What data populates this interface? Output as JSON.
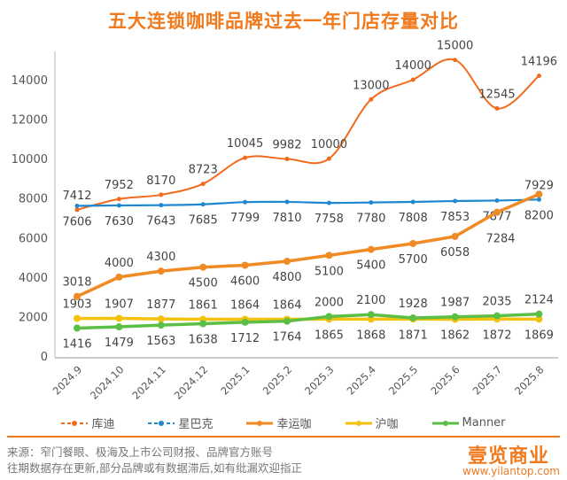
{
  "chart_data": {
    "type": "line",
    "title": "五大连锁咖啡品牌过去一年门店存量对比",
    "categories": [
      "2024.9",
      "2024.10",
      "2024.11",
      "2024.12",
      "2025.1",
      "2025.2",
      "2025.3",
      "2025.4",
      "2025.5",
      "2025.6",
      "2025.7",
      "2025.8"
    ],
    "yticks": [
      0,
      2000,
      4000,
      6000,
      8000,
      10000,
      12000,
      14000
    ],
    "ylim": [
      0,
      14000
    ],
    "legend_position": "bottom",
    "series": [
      {
        "name": "库迪",
        "color": "#f26b1d",
        "values": [
          7412,
          7952,
          8170,
          8723,
          10045,
          9982,
          10000,
          13000,
          14000,
          15000,
          12545,
          14196
        ]
      },
      {
        "name": "星巴克",
        "color": "#1f88d0",
        "values": [
          7606,
          7630,
          7643,
          7685,
          7799,
          7810,
          7758,
          7780,
          7808,
          7853,
          7877,
          7929
        ]
      },
      {
        "name": "幸运咖",
        "color": "#f08a24",
        "values": [
          3018,
          4000,
          4300,
          4500,
          4600,
          4800,
          5100,
          5400,
          5700,
          6058,
          7284,
          8200
        ]
      },
      {
        "name": "沪咖",
        "color": "#f4c20d",
        "values": [
          1903,
          1907,
          1877,
          1861,
          1864,
          1864,
          1865,
          1868,
          1871,
          1862,
          1872,
          1869
        ]
      },
      {
        "name": "Manner",
        "color": "#5cbf45",
        "values": [
          1416,
          1479,
          1563,
          1638,
          1712,
          1764,
          2000,
          2100,
          1928,
          1987,
          2035,
          2124
        ]
      }
    ]
  },
  "footer": {
    "source": "来源：窄门餐眼、极海及上市公司财报、品牌官方账号",
    "note": "往期数据存在更新,部分品牌或有数据滞后,如有纰漏欢迎指正",
    "logo": "壹览商业",
    "url": "www.yilantop.com"
  }
}
